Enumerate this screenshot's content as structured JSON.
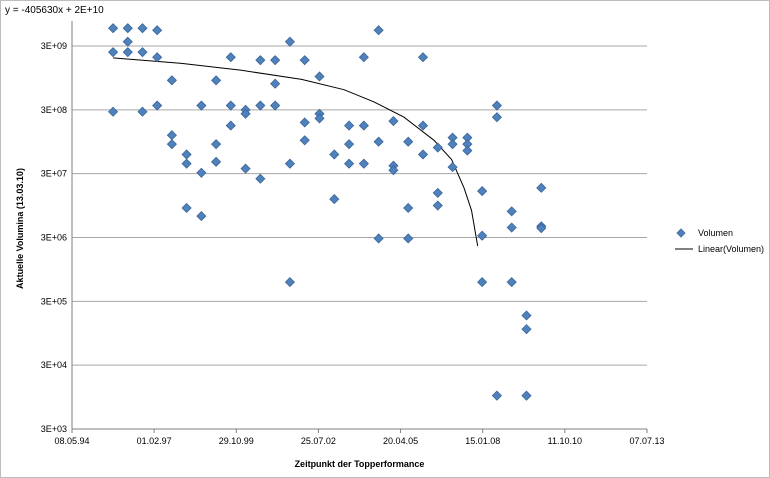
{
  "chart_data": {
    "type": "scatter",
    "annotation": "y = -405630x + 2E+10",
    "xlabel": "Zeitpunkt der Topperformance",
    "ylabel": "Aktuelle Volumina (13.03.10)",
    "x_scale": "date",
    "y_scale": "log",
    "xlim": [
      "1994-05-08",
      "2013-07-07"
    ],
    "ylim": [
      3000,
      3000000000
    ],
    "x_ticks": [
      "08.05.94",
      "01.02.97",
      "29.10.99",
      "25.07.02",
      "20.04.05",
      "15.01.08",
      "11.10.10",
      "07.07.13"
    ],
    "y_ticks": [
      "3E+03",
      "3E+04",
      "3E+05",
      "3E+06",
      "3E+07",
      "3E+08",
      "3E+09"
    ],
    "grid": {
      "horizontal": true,
      "vertical": false
    },
    "legend_position": "right",
    "colors": {
      "marker": "#4f81bd",
      "marker_stroke": "#3a6597",
      "trendline": "#000000",
      "grid": "#a6a6a6",
      "axis": "#7f7f7f"
    },
    "series": [
      {
        "name": "Volumen",
        "marker": "diamond",
        "points": [
          [
            "1995-09-20",
            5700000000.0
          ],
          [
            "1995-09-20",
            2400000000.0
          ],
          [
            "1995-09-20",
            280000000.0
          ],
          [
            "1996-03-17",
            5700000000.0
          ],
          [
            "1996-03-17",
            3500000000.0
          ],
          [
            "1996-03-17",
            2400000000.0
          ],
          [
            "1996-09-12",
            5700000000.0
          ],
          [
            "1996-09-12",
            2400000000.0
          ],
          [
            "1996-09-12",
            280000000.0
          ],
          [
            "1997-03-10",
            5300000000.0
          ],
          [
            "1997-03-10",
            2000000000.0
          ],
          [
            "1997-03-10",
            350000000.0
          ],
          [
            "1997-09-05",
            870000000.0
          ],
          [
            "1997-09-05",
            120000000.0
          ],
          [
            "1997-09-05",
            87000000.0
          ],
          [
            "1998-03-03",
            60000000.0
          ],
          [
            "1998-03-03",
            43000000.0
          ],
          [
            "1998-03-03",
            8700000.0
          ],
          [
            "1998-08-30",
            350000000.0
          ],
          [
            "1998-08-30",
            31000000.0
          ],
          [
            "1998-08-30",
            6500000.0
          ],
          [
            "1999-02-25",
            870000000.0
          ],
          [
            "1999-02-25",
            87000000.0
          ],
          [
            "1999-02-25",
            46000000.0
          ],
          [
            "1999-08-23",
            2000000000.0
          ],
          [
            "1999-08-23",
            350000000.0
          ],
          [
            "1999-08-23",
            170000000.0
          ],
          [
            "2000-02-19",
            300000000.0
          ],
          [
            "2000-02-19",
            260000000.0
          ],
          [
            "2000-02-19",
            36000000.0
          ],
          [
            "2000-08-17",
            1800000000.0
          ],
          [
            "2000-08-17",
            350000000.0
          ],
          [
            "2000-08-17",
            25000000.0
          ],
          [
            "2001-02-13",
            1800000000.0
          ],
          [
            "2001-02-13",
            770000000.0
          ],
          [
            "2001-02-13",
            350000000.0
          ],
          [
            "2001-08-12",
            3500000000.0
          ],
          [
            "2001-08-12",
            43000000.0
          ],
          [
            "2001-08-12",
            600000.0
          ],
          [
            "2002-02-08",
            1800000000.0
          ],
          [
            "2002-02-08",
            190000000.0
          ],
          [
            "2002-02-08",
            100000000.0
          ],
          [
            "2002-08-07",
            1000000000.0
          ],
          [
            "2002-08-07",
            260000000.0
          ],
          [
            "2002-08-07",
            220000000.0
          ],
          [
            "2003-02-03",
            60000000.0
          ],
          [
            "2003-02-03",
            12000000.0
          ],
          [
            "2003-08-02",
            170000000.0
          ],
          [
            "2003-08-02",
            87000000.0
          ],
          [
            "2003-08-02",
            43000000.0
          ],
          [
            "2004-01-29",
            2000000000.0
          ],
          [
            "2004-01-29",
            170000000.0
          ],
          [
            "2004-01-29",
            43000000.0
          ],
          [
            "2004-07-27",
            5300000000.0
          ],
          [
            "2004-07-27",
            95000000.0
          ],
          [
            "2004-07-27",
            2900000.0
          ],
          [
            "2005-01-23",
            200000000.0
          ],
          [
            "2005-01-23",
            40000000.0
          ],
          [
            "2005-01-23",
            34000000.0
          ],
          [
            "2005-07-22",
            95000000.0
          ],
          [
            "2005-07-22",
            8700000.0
          ],
          [
            "2005-07-22",
            2900000.0
          ],
          [
            "2006-01-18",
            2000000000.0
          ],
          [
            "2006-01-18",
            170000000.0
          ],
          [
            "2006-01-18",
            60000000.0
          ],
          [
            "2006-07-17",
            77000000.0
          ],
          [
            "2006-07-17",
            15000000.0
          ],
          [
            "2006-07-17",
            9500000.0
          ],
          [
            "2007-01-13",
            110000000.0
          ],
          [
            "2007-01-13",
            87000000.0
          ],
          [
            "2007-01-13",
            38000000.0
          ],
          [
            "2007-07-12",
            110000000.0
          ],
          [
            "2007-07-12",
            87000000.0
          ],
          [
            "2007-07-12",
            69000000.0
          ],
          [
            "2008-01-08",
            16000000.0
          ],
          [
            "2008-01-08",
            3200000.0
          ],
          [
            "2008-01-08",
            600000.0
          ],
          [
            "2008-07-06",
            350000000.0
          ],
          [
            "2008-07-06",
            230000000.0
          ],
          [
            "2008-07-06",
            10000.0
          ],
          [
            "2009-01-02",
            7700000.0
          ],
          [
            "2009-01-02",
            4300000.0
          ],
          [
            "2009-01-02",
            600000.0
          ],
          [
            "2009-07-01",
            180000.0
          ],
          [
            "2009-07-01",
            110000.0
          ],
          [
            "2009-07-01",
            10000.0
          ],
          [
            "2009-12-28",
            18000000.0
          ],
          [
            "2009-12-28",
            4500000.0
          ],
          [
            "2009-12-28",
            4200000.0
          ]
        ]
      },
      {
        "name": "Linear(Volumen)",
        "kind": "trendline",
        "points": [
          [
            "1995-09-20",
            1950000000.0
          ],
          [
            "1998-01-01",
            1600000000.0
          ],
          [
            "2000-01-01",
            1250000000.0
          ],
          [
            "2002-01-01",
            900000000.0
          ],
          [
            "2003-06-01",
            620000000.0
          ],
          [
            "2004-06-01",
            400000000.0
          ],
          [
            "2005-06-01",
            230000000.0
          ],
          [
            "2006-06-01",
            100000000.0
          ],
          [
            "2007-01-01",
            50000000.0
          ],
          [
            "2007-06-01",
            18000000.0
          ],
          [
            "2007-09-01",
            8000000.0
          ],
          [
            "2007-11-15",
            2200000.0
          ]
        ]
      }
    ]
  }
}
